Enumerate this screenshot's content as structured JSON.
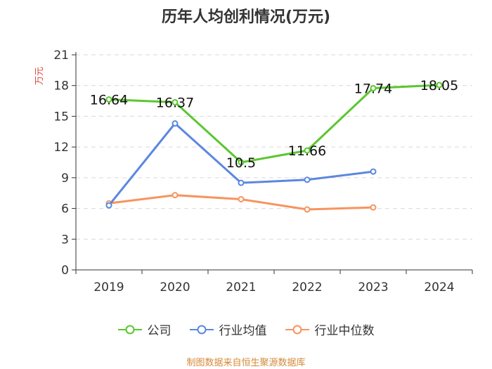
{
  "chart_data": {
    "type": "line",
    "title": "历年人均创利情况(万元)",
    "ylabel": "万元",
    "xlabel": "",
    "categories": [
      "2019",
      "2020",
      "2021",
      "2022",
      "2023",
      "2024"
    ],
    "ylim": [
      0,
      21
    ],
    "yticks": [
      0,
      3,
      6,
      9,
      12,
      15,
      18,
      21
    ],
    "grid": true,
    "legend_position": "bottom",
    "series": [
      {
        "name": "公司",
        "color": "#5ac72e",
        "show_labels": true,
        "values": [
          16.64,
          16.37,
          10.5,
          11.66,
          17.74,
          18.05
        ],
        "labels": [
          "16.64",
          "16.37",
          "10.5",
          "11.66",
          "17.74",
          "18.05"
        ]
      },
      {
        "name": "行业均值",
        "color": "#5b87e0",
        "show_labels": false,
        "values": [
          6.3,
          14.3,
          8.5,
          8.8,
          9.6,
          null
        ]
      },
      {
        "name": "行业中位数",
        "color": "#f7945e",
        "show_labels": false,
        "values": [
          6.5,
          7.3,
          6.9,
          5.9,
          6.1,
          null
        ]
      }
    ]
  },
  "source": "制图数据来自恒生聚源数据库"
}
